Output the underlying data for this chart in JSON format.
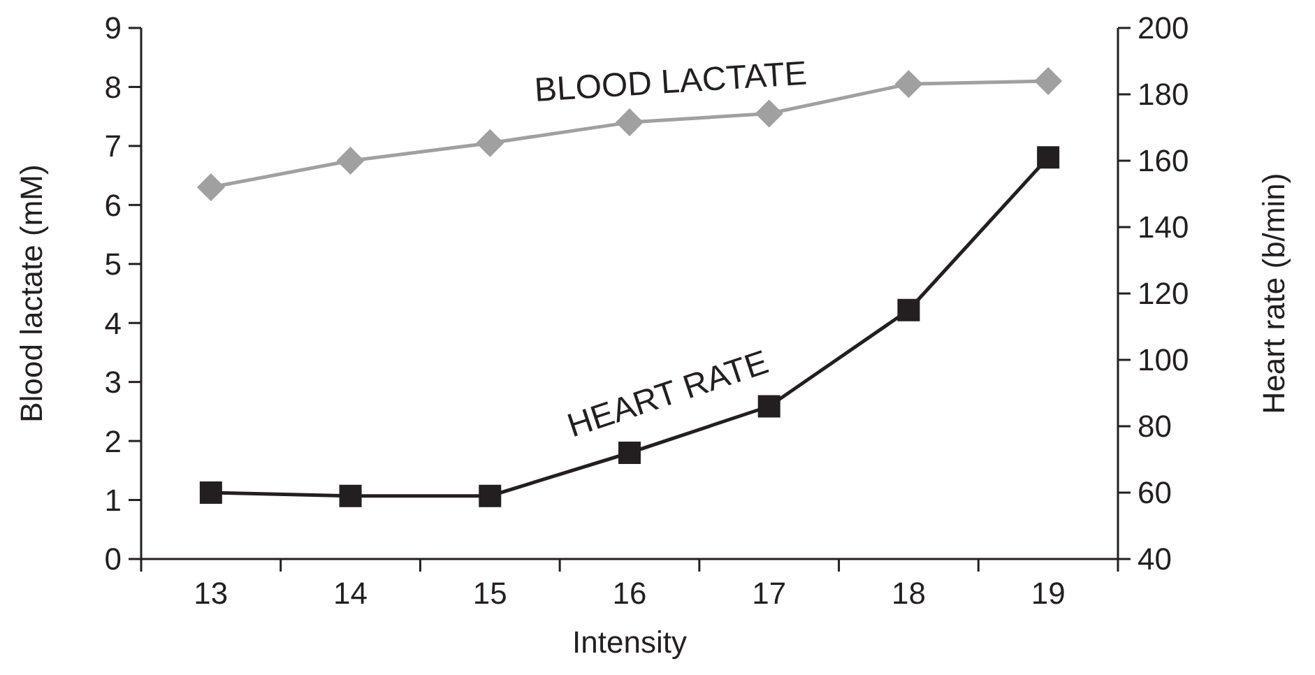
{
  "chart_data": {
    "type": "line",
    "xlabel": "Intensity",
    "ylabel": "Blood lactate (mM)",
    "y2label": "Heart rate (b/min)",
    "categories": [
      "13",
      "14",
      "15",
      "16",
      "17",
      "18",
      "19"
    ],
    "series": [
      {
        "name": "BLOOD LACTATE",
        "color": "#a0a0a0",
        "marker": "diamond",
        "values": [
          6.3,
          6.75,
          7.05,
          7.4,
          7.55,
          8.05,
          8.1
        ]
      },
      {
        "name": "HEART RATE",
        "color": "#231f20",
        "marker": "square",
        "axis": "y2",
        "values": [
          60,
          59,
          59,
          72,
          86,
          115,
          161
        ]
      }
    ],
    "ylim": [
      0,
      9
    ],
    "yticks": [
      0,
      1,
      2,
      3,
      4,
      5,
      6,
      7,
      8,
      9
    ],
    "y2lim": [
      40,
      200
    ],
    "y2ticks": [
      40,
      60,
      80,
      100,
      120,
      140,
      160,
      180,
      200
    ],
    "grid": false
  }
}
